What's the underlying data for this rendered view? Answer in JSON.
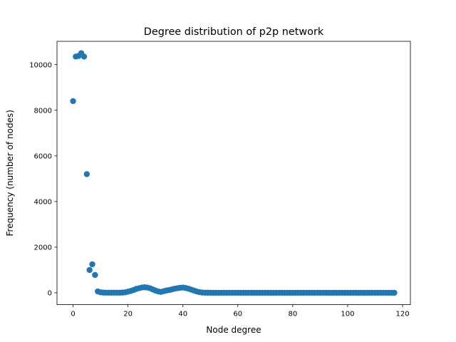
{
  "chart_data": {
    "type": "scatter",
    "title": "Degree distribution of p2p network",
    "xlabel": "Node degree",
    "ylabel": "Frequency (number of nodes)",
    "xlim": [
      -5.85,
      122.85
    ],
    "ylim": [
      -520,
      11020
    ],
    "xticks": [
      0,
      20,
      40,
      60,
      80,
      100,
      120
    ],
    "yticks": [
      0,
      2000,
      4000,
      6000,
      8000,
      10000
    ],
    "grid": false,
    "marker_color": "#1f77b4",
    "series": [
      {
        "x": [
          0,
          1,
          2,
          3,
          4,
          5,
          6,
          7,
          8,
          9,
          10,
          11,
          12,
          13,
          14,
          15,
          16,
          17,
          18,
          19,
          20,
          21,
          22,
          23,
          24,
          25,
          26,
          27,
          28,
          29,
          30,
          31,
          32,
          33,
          34,
          35,
          36,
          37,
          38,
          39,
          40,
          41,
          42,
          43,
          44,
          45,
          46,
          47,
          48,
          49,
          50,
          51,
          52,
          53,
          54,
          55,
          56,
          57,
          58,
          59,
          60,
          61,
          62,
          63,
          64,
          65,
          66,
          67,
          68,
          69,
          70,
          71,
          72,
          73,
          74,
          75,
          76,
          77,
          78,
          79,
          80,
          81,
          82,
          83,
          84,
          85,
          86,
          87,
          88,
          89,
          90,
          91,
          92,
          93,
          94,
          95,
          96,
          97,
          98,
          99,
          100,
          101,
          102,
          103,
          104,
          105,
          106,
          107,
          108,
          109,
          110,
          111,
          112,
          113,
          114,
          115,
          116,
          117
        ],
        "values": [
          8400,
          10350,
          10380,
          10500,
          10350,
          5200,
          1000,
          1250,
          780,
          60,
          20,
          10,
          5,
          5,
          5,
          5,
          5,
          5,
          10,
          20,
          50,
          80,
          120,
          170,
          200,
          230,
          240,
          230,
          200,
          150,
          100,
          60,
          40,
          70,
          100,
          120,
          150,
          180,
          200,
          220,
          230,
          210,
          180,
          140,
          100,
          60,
          30,
          10,
          5,
          2,
          0,
          0,
          0,
          0,
          0,
          0,
          0,
          0,
          0,
          0,
          0,
          0,
          0,
          0,
          0,
          0,
          0,
          0,
          0,
          0,
          0,
          0,
          0,
          0,
          0,
          0,
          0,
          0,
          0,
          0,
          0,
          0,
          0,
          0,
          0,
          0,
          0,
          0,
          0,
          0,
          0,
          0,
          0,
          0,
          0,
          0,
          0,
          0,
          0,
          0,
          0,
          0,
          0,
          0,
          0,
          0,
          0,
          0,
          0,
          0,
          0,
          0,
          0,
          0,
          0,
          0,
          0,
          0
        ]
      }
    ]
  }
}
